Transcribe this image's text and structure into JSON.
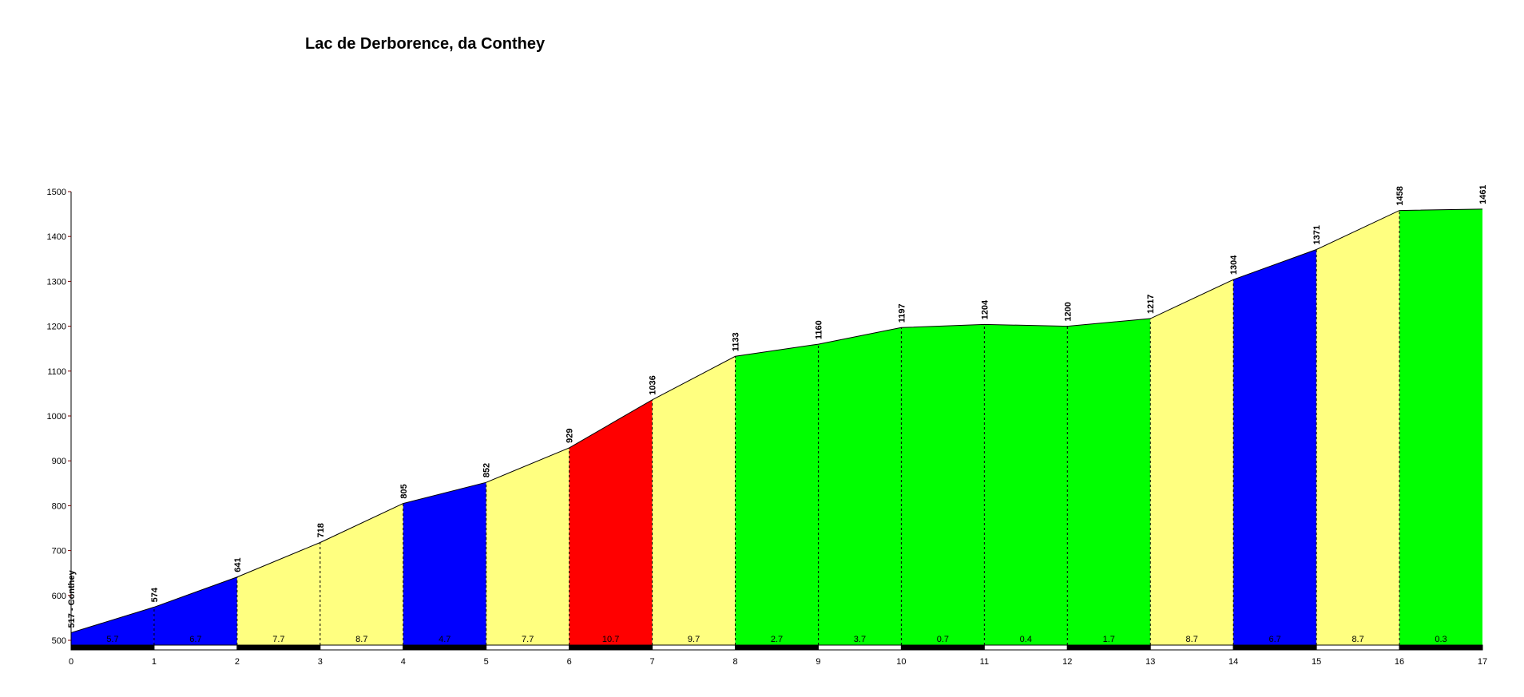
{
  "chart_data": {
    "type": "area",
    "title": "Lac de Derborence, da Conthey",
    "xlabel": "",
    "ylabel": "",
    "xlim": [
      0,
      17
    ],
    "ylim": [
      500,
      1500
    ],
    "x_ticks": [
      "0",
      "1",
      "2",
      "3",
      "4",
      "5",
      "6",
      "7",
      "8",
      "9",
      "10",
      "11",
      "12",
      "13",
      "14",
      "15",
      "16",
      "17"
    ],
    "y_ticks": [
      "500",
      "600",
      "700",
      "800",
      "900",
      "1000",
      "1100",
      "1200",
      "1300",
      "1400",
      "1500"
    ],
    "x": [
      0,
      1,
      2,
      3,
      4,
      5,
      6,
      7,
      8,
      9,
      10,
      11,
      12,
      13,
      14,
      15,
      16,
      17
    ],
    "elevations": [
      517,
      574,
      641,
      718,
      805,
      852,
      929,
      1036,
      1133,
      1160,
      1197,
      1204,
      1200,
      1217,
      1304,
      1371,
      1458,
      1461
    ],
    "elevation_labels": [
      "517 - Conthey",
      "574",
      "641",
      "718",
      "805",
      "852",
      "929",
      "1036",
      "1133",
      "1160",
      "1197",
      "1204",
      "1200",
      "1217",
      "1304",
      "1371",
      "1458",
      "1461"
    ],
    "gradients": [
      "5.7",
      "6.7",
      "7.7",
      "8.7",
      "4.7",
      "7.7",
      "10.7",
      "9.7",
      "2.7",
      "3.7",
      "0.7",
      "0.4",
      "1.7",
      "8.7",
      "6.7",
      "8.7",
      "0.3"
    ],
    "gradient_colors": {
      "low": "#00ff00",
      "medium": "#0000ff",
      "high": "#ffff80",
      "steep": "#ff0000"
    },
    "grid": false
  }
}
